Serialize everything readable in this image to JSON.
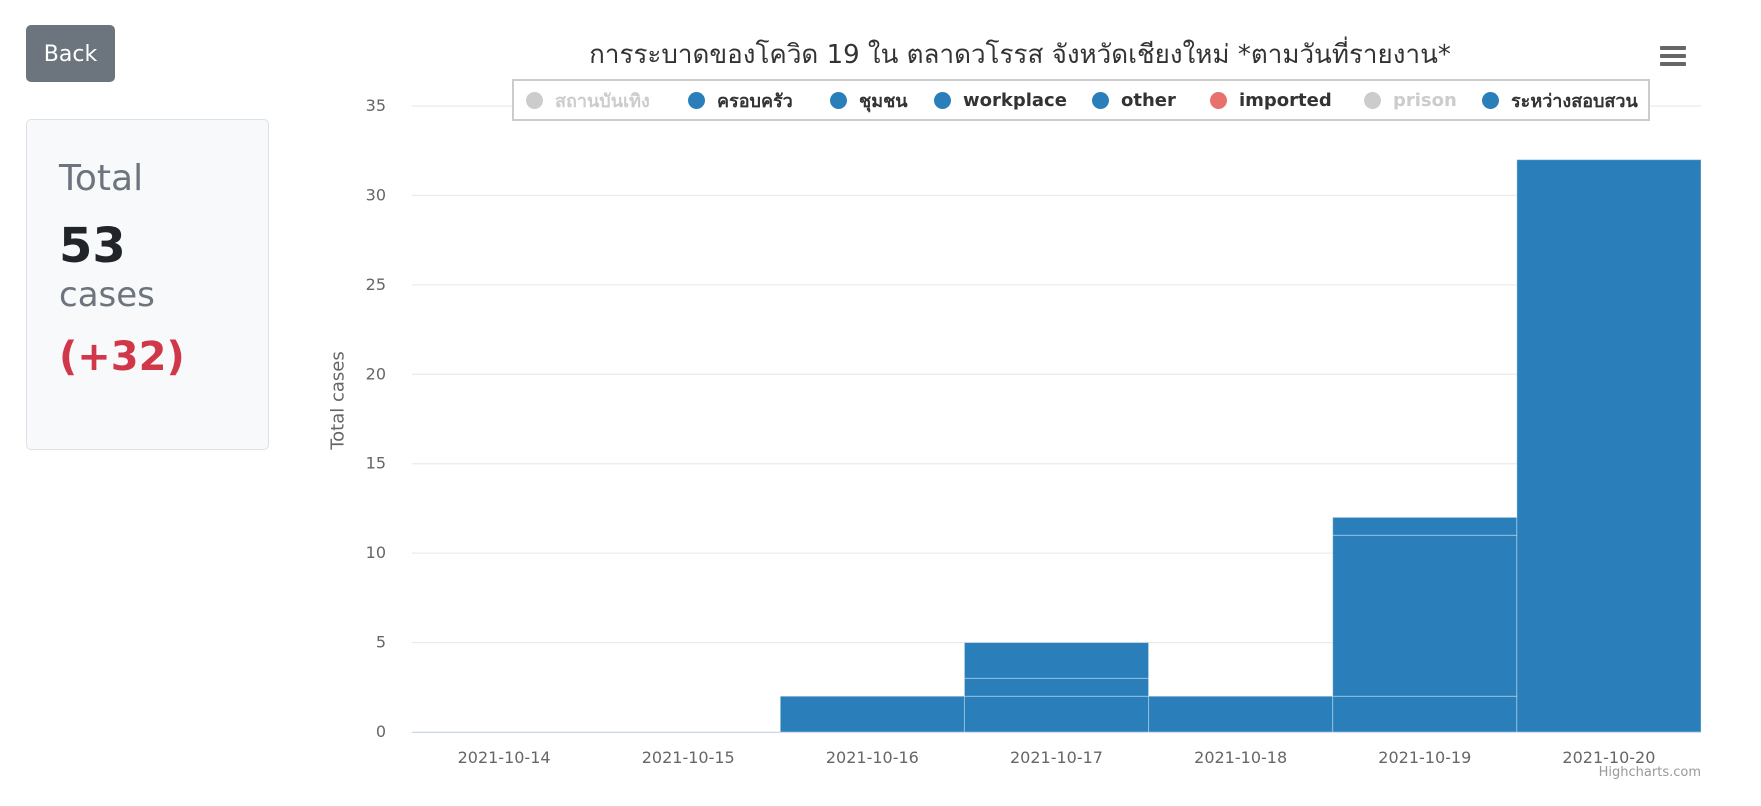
{
  "back_button": {
    "label": "Back"
  },
  "summary": {
    "label": "Total",
    "count": "53",
    "unit": "cases",
    "delta": "(+32)"
  },
  "chart_data": {
    "type": "bar",
    "title": "การระบาดของโควิด 19 ใน ตลาดวโรรส จังหวัดเชียงใหม่ *ตามวันที่รายงาน*",
    "ylabel": "Total cases",
    "ylim": [
      0,
      35
    ],
    "yticks": [
      0,
      5,
      10,
      15,
      20,
      25,
      30,
      35
    ],
    "categories": [
      "2021-10-14",
      "2021-10-15",
      "2021-10-16",
      "2021-10-17",
      "2021-10-18",
      "2021-10-19",
      "2021-10-20"
    ],
    "stacked": true,
    "legend_position": "top-center",
    "grid": true,
    "bar_color": "#2a7fba",
    "series": [
      {
        "name": "สถานบันเทิง",
        "color": "#cccccc",
        "visible": false,
        "values": [
          0,
          0,
          0,
          0,
          0,
          0,
          0
        ]
      },
      {
        "name": "ครอบครัว",
        "color": "#2a7fba",
        "visible": true,
        "values": [
          0,
          0,
          2,
          2,
          2,
          2,
          0
        ]
      },
      {
        "name": "ชุมชน",
        "color": "#2a7fba",
        "visible": true,
        "values": [
          0,
          0,
          0,
          1,
          0,
          9,
          0
        ]
      },
      {
        "name": "workplace",
        "color": "#2a7fba",
        "visible": true,
        "values": [
          0,
          0,
          0,
          2,
          0,
          1,
          0
        ]
      },
      {
        "name": "other",
        "color": "#2a7fba",
        "visible": true,
        "values": [
          0,
          0,
          0,
          0,
          0,
          0,
          0
        ]
      },
      {
        "name": "imported",
        "color": "#e8716d",
        "visible": true,
        "values": [
          0,
          0,
          0,
          0,
          0,
          0,
          0
        ]
      },
      {
        "name": "prison",
        "color": "#cccccc",
        "visible": false,
        "values": [
          0,
          0,
          0,
          0,
          0,
          0,
          0
        ]
      },
      {
        "name": "ระหว่างสอบสวน",
        "color": "#2a7fba",
        "visible": true,
        "values": [
          0,
          0,
          0,
          0,
          0,
          0,
          32
        ]
      }
    ],
    "credits": "Highcharts.com"
  },
  "menu": {
    "icon": "hamburger-menu-icon"
  }
}
